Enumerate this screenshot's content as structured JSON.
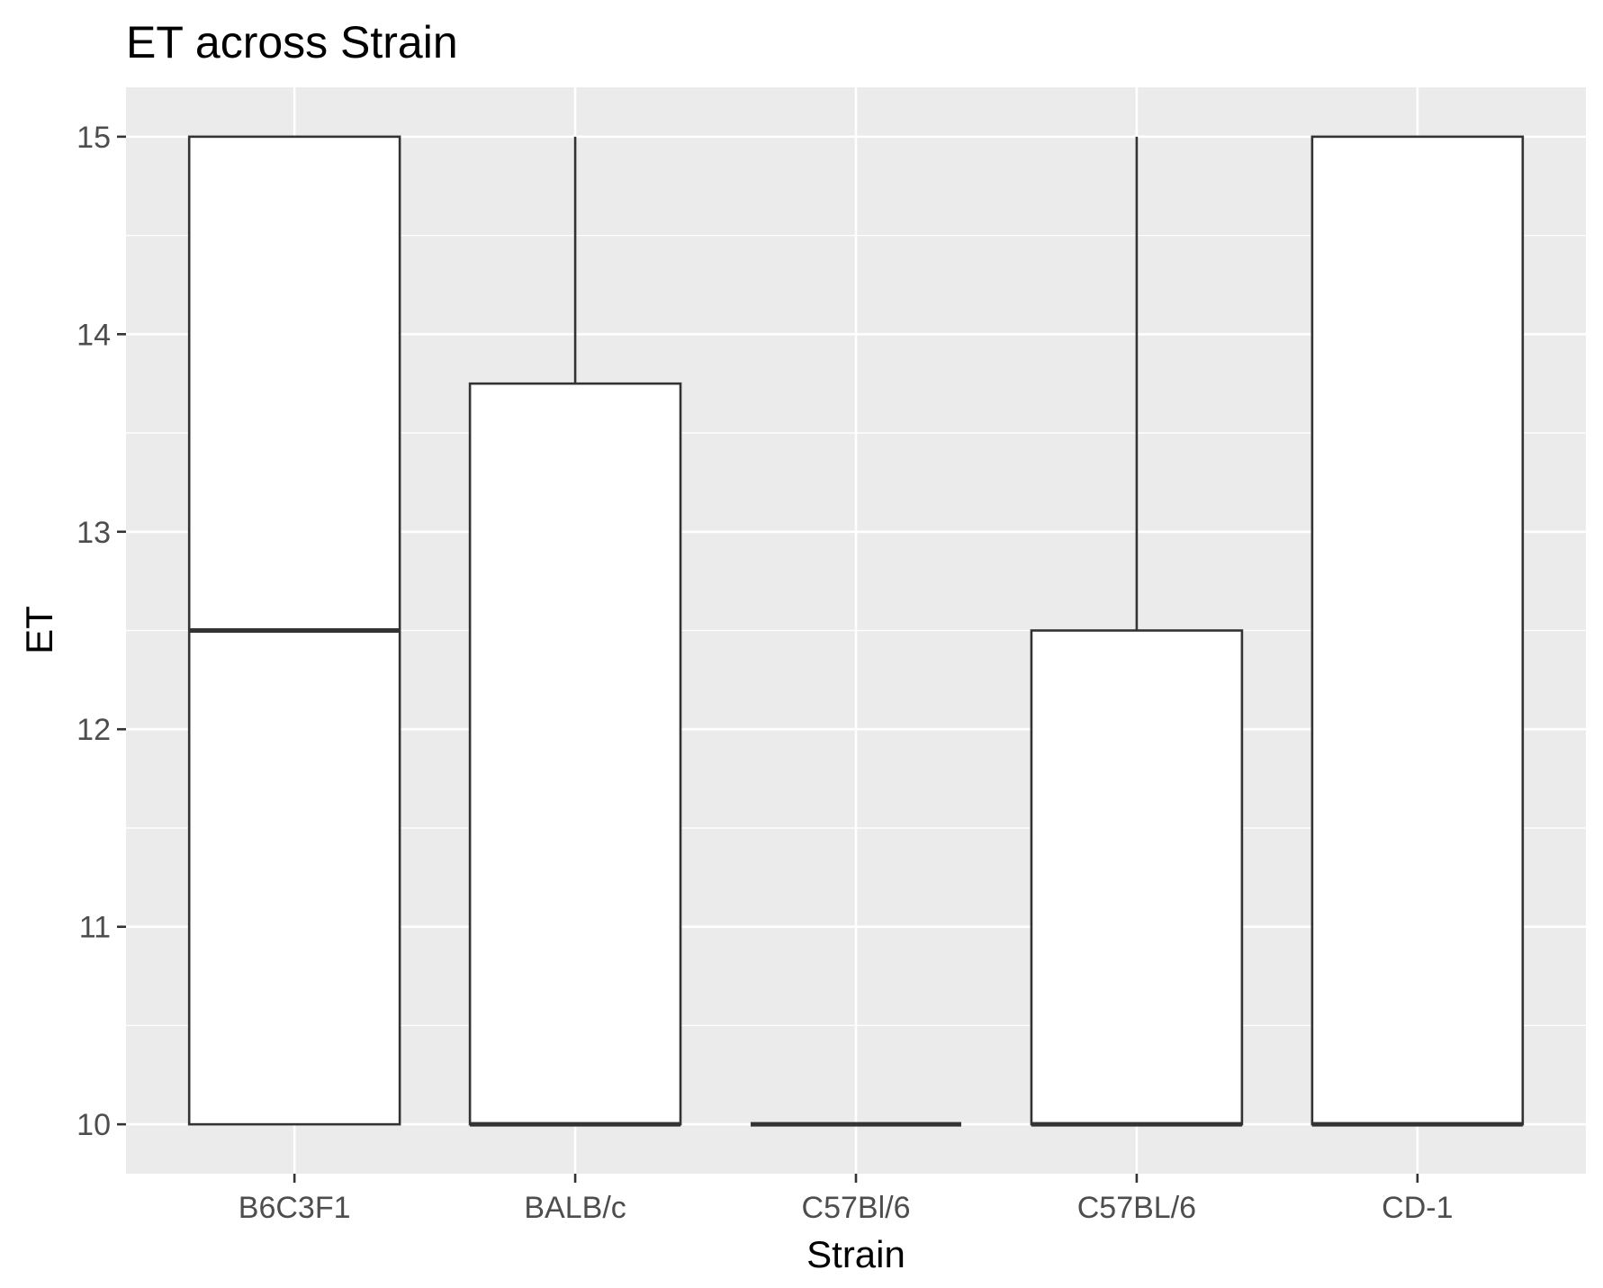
{
  "chart_data": {
    "type": "boxplot",
    "title": "ET across Strain",
    "xlabel": "Strain",
    "ylabel": "ET",
    "categories": [
      "B6C3F1",
      "BALB/c",
      "C57Bl/6",
      "C57BL/6",
      "CD-1"
    ],
    "boxes": [
      {
        "category": "B6C3F1",
        "whisker_low": 10,
        "q1": 10,
        "median": 12.5,
        "q3": 15,
        "whisker_high": 15
      },
      {
        "category": "BALB/c",
        "whisker_low": 10,
        "q1": 10,
        "median": 10,
        "q3": 13.75,
        "whisker_high": 15
      },
      {
        "category": "C57Bl/6",
        "whisker_low": 10,
        "q1": 10,
        "median": 10,
        "q3": 10,
        "whisker_high": 10
      },
      {
        "category": "C57BL/6",
        "whisker_low": 10,
        "q1": 10,
        "median": 10,
        "q3": 12.5,
        "whisker_high": 15
      },
      {
        "category": "CD-1",
        "whisker_low": 10,
        "q1": 10,
        "median": 10,
        "q3": 15,
        "whisker_high": 15
      }
    ],
    "ylim": [
      9.75,
      15.25
    ],
    "yticks": [
      10,
      11,
      12,
      13,
      14,
      15
    ],
    "grid": true,
    "colors": {
      "panel": "#ebebeb",
      "grid": "#ffffff",
      "box_fill": "#ffffff",
      "box_stroke": "#333333",
      "tick_text": "#4d4d4d"
    }
  }
}
